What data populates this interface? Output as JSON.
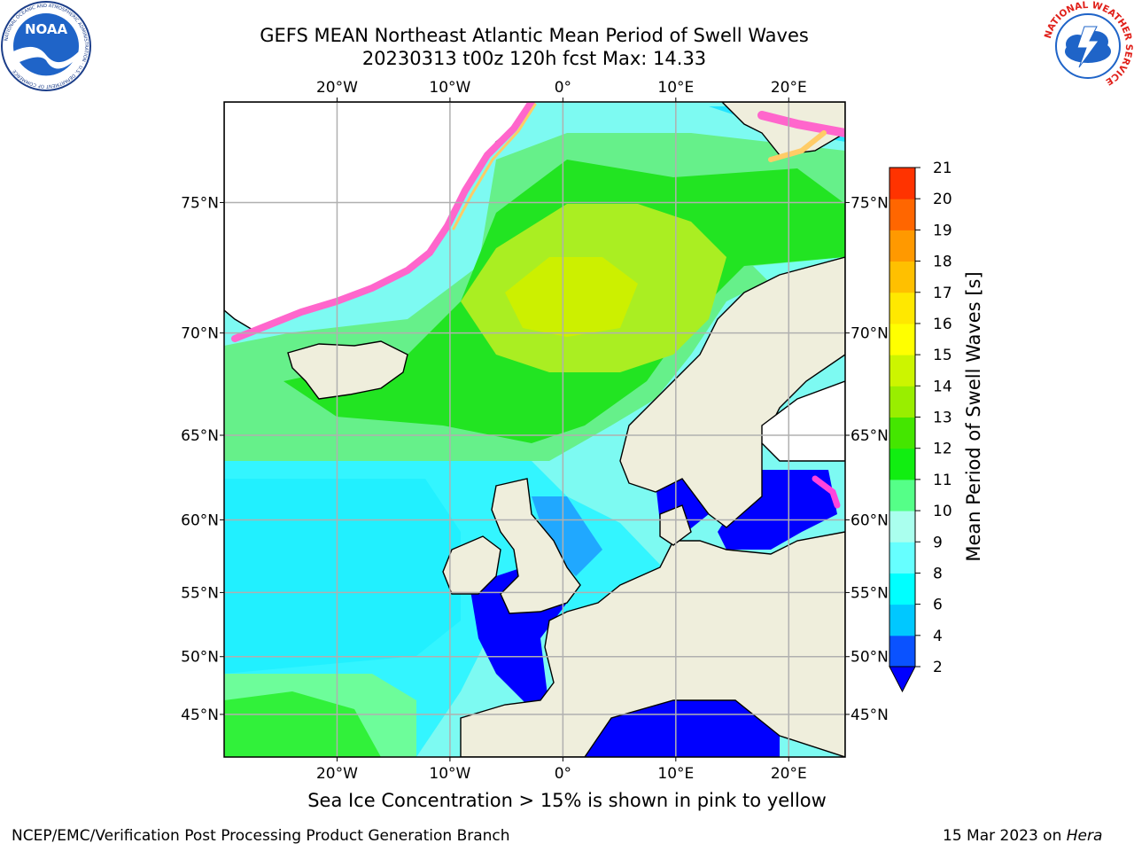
{
  "header": {
    "title_line1": "GEFS MEAN Northeast Atlantic Mean Period of Swell Waves",
    "title_line2": "20230313 t00z 120h fcst   Max: 14.33"
  },
  "logos": {
    "noaa_text": "NOAA",
    "noaa_ring_text": "NATIONAL OCEANIC AND ATMOSPHERIC ADMINISTRATION · U.S. DEPARTMENT OF COMMERCE",
    "nws_ring_text": "NATIONAL WEATHER SERVICE"
  },
  "map": {
    "lon_labels_top": [
      "20°W",
      "10°W",
      "0°",
      "10°E",
      "20°E"
    ],
    "lon_labels_bottom": [
      "20°W",
      "10°W",
      "0°",
      "10°E",
      "20°E"
    ],
    "lat_labels_left": [
      "75°N",
      "70°N",
      "65°N",
      "60°N",
      "55°N",
      "50°N",
      "45°N"
    ],
    "lat_labels_right": [
      "75°N",
      "70°N",
      "65°N",
      "60°N",
      "55°N",
      "50°N",
      "45°N"
    ],
    "lon_values": [
      -20,
      -10,
      0,
      10,
      20
    ],
    "lat_values": [
      75,
      70,
      65,
      60,
      55,
      50,
      45
    ],
    "extent": {
      "lon": [
        -30,
        25
      ],
      "lat": [
        41,
        78
      ]
    },
    "colors": {
      "land": "#efeedc",
      "grid": "#b0b0b0",
      "coast": "#000000"
    }
  },
  "colorbar": {
    "label": "Mean Period of Swell Waves [s]",
    "ticks": [
      "2",
      "4",
      "6",
      "8",
      "9",
      "10",
      "11",
      "12",
      "13",
      "14",
      "15",
      "16",
      "17",
      "18",
      "19",
      "20",
      "21"
    ],
    "colors": [
      "#0a52ff",
      "#00c8ff",
      "#00ffff",
      "#66ffff",
      "#aaffee",
      "#55ff88",
      "#11ee11",
      "#44e600",
      "#99ee00",
      "#ccf500",
      "#ffff00",
      "#ffe800",
      "#ffc000",
      "#ff9900",
      "#ff6600",
      "#ff3300"
    ],
    "extend_color": "#0000ff"
  },
  "footer": {
    "ice_note": "Sea Ice Concentration > 15% is shown in pink to yellow",
    "credit": "NCEP/EMC/Verification Post Processing Product Generation Branch",
    "date_prefix": "15 Mar 2023 on ",
    "machine": "Hera"
  }
}
